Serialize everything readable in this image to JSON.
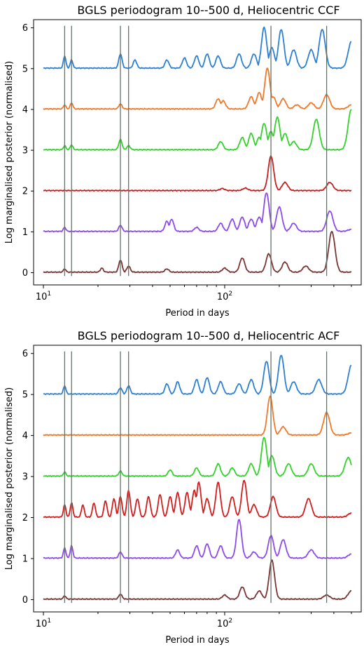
{
  "chart_data": [
    {
      "type": "line",
      "title": "BGLS periodogram  10--500 d, Heliocentric CCF",
      "xlabel": "Period in days",
      "ylabel": "Log marginalised posterior (normalised)",
      "xscale": "log",
      "xlim": [
        10,
        500
      ],
      "ylim": [
        -0.3,
        6.2
      ],
      "yticks": [
        0,
        1,
        2,
        3,
        4,
        5,
        6
      ],
      "xticks": [
        {
          "base": "10",
          "exp": "1",
          "value": 10
        },
        {
          "base": "10",
          "exp": "2",
          "value": 100
        }
      ],
      "vlines": [
        13.1,
        14.3,
        26.6,
        29.5,
        180,
        365
      ],
      "series": [
        {
          "offset": 5,
          "color": "#2b7fd4",
          "peaks": [
            [
              13.1,
              0.3
            ],
            [
              14.3,
              0.2
            ],
            [
              26.6,
              0.35
            ],
            [
              32,
              0.2
            ],
            [
              48,
              0.2
            ],
            [
              60,
              0.25
            ],
            [
              70,
              0.3
            ],
            [
              80,
              0.35
            ],
            [
              92,
              0.3
            ],
            [
              120,
              0.35
            ],
            [
              145,
              0.35
            ],
            [
              165,
              1.0
            ],
            [
              182,
              0.5
            ],
            [
              205,
              0.95
            ],
            [
              240,
              0.45
            ],
            [
              300,
              0.45
            ],
            [
              345,
              0.95
            ],
            [
              500,
              0.65
            ]
          ]
        },
        {
          "offset": 4,
          "color": "#f07828",
          "peaks": [
            [
              13.1,
              0.1
            ],
            [
              14.3,
              0.15
            ],
            [
              26.6,
              0.12
            ],
            [
              92,
              0.25
            ],
            [
              98,
              0.2
            ],
            [
              140,
              0.3
            ],
            [
              155,
              0.4
            ],
            [
              172,
              1.0
            ],
            [
              185,
              0.3
            ],
            [
              210,
              0.25
            ],
            [
              250,
              0.1
            ],
            [
              300,
              0.15
            ],
            [
              365,
              0.35
            ],
            [
              500,
              0.1
            ]
          ]
        },
        {
          "offset": 3,
          "color": "#32d22a",
          "peaks": [
            [
              13.1,
              0.1
            ],
            [
              14.3,
              0.12
            ],
            [
              26.6,
              0.25
            ],
            [
              29.5,
              0.1
            ],
            [
              95,
              0.2
            ],
            [
              125,
              0.3
            ],
            [
              140,
              0.4
            ],
            [
              155,
              0.3
            ],
            [
              165,
              0.65
            ],
            [
              180,
              0.45
            ],
            [
              195,
              0.8
            ],
            [
              215,
              0.4
            ],
            [
              240,
              0.2
            ],
            [
              320,
              0.75
            ],
            [
              500,
              1.0
            ]
          ]
        },
        {
          "offset": 2,
          "color": "#c81e1e",
          "peaks": [
            [
              97,
              0.05
            ],
            [
              130,
              0.06
            ],
            [
              180,
              0.85
            ],
            [
              215,
              0.2
            ],
            [
              380,
              0.2
            ]
          ]
        },
        {
          "offset": 1,
          "color": "#8c4aec",
          "peaks": [
            [
              13.1,
              0.1
            ],
            [
              26.6,
              0.15
            ],
            [
              48,
              0.25
            ],
            [
              51,
              0.3
            ],
            [
              70,
              0.1
            ],
            [
              95,
              0.2
            ],
            [
              110,
              0.3
            ],
            [
              125,
              0.35
            ],
            [
              140,
              0.3
            ],
            [
              155,
              0.35
            ],
            [
              170,
              0.95
            ],
            [
              200,
              0.6
            ],
            [
              240,
              0.2
            ],
            [
              380,
              0.5
            ],
            [
              500,
              0.05
            ]
          ]
        },
        {
          "offset": 0,
          "color": "#7a3434",
          "peaks": [
            [
              13.1,
              0.08
            ],
            [
              21,
              0.1
            ],
            [
              26.6,
              0.3
            ],
            [
              29.5,
              0.15
            ],
            [
              48,
              0.08
            ],
            [
              100,
              0.1
            ],
            [
              125,
              0.35
            ],
            [
              175,
              0.45
            ],
            [
              215,
              0.25
            ],
            [
              280,
              0.15
            ],
            [
              390,
              1.0
            ]
          ]
        }
      ]
    },
    {
      "type": "line",
      "title": "BGLS periodogram  10--500 d, Heliocentric ACF",
      "xlabel": "Period in days",
      "ylabel": "Log marginalised posterior (normalised)",
      "xscale": "log",
      "xlim": [
        10,
        500
      ],
      "ylim": [
        -0.3,
        6.2
      ],
      "yticks": [
        0,
        1,
        2,
        3,
        4,
        5,
        6
      ],
      "xticks": [
        {
          "base": "10",
          "exp": "1",
          "value": 10
        },
        {
          "base": "10",
          "exp": "2",
          "value": 100
        }
      ],
      "vlines": [
        13.1,
        14.3,
        26.6,
        29.5,
        180,
        365
      ],
      "series": [
        {
          "offset": 5,
          "color": "#2b7fd4",
          "peaks": [
            [
              13.1,
              0.2
            ],
            [
              26.6,
              0.15
            ],
            [
              29.5,
              0.2
            ],
            [
              48,
              0.25
            ],
            [
              55,
              0.3
            ],
            [
              70,
              0.35
            ],
            [
              80,
              0.4
            ],
            [
              95,
              0.3
            ],
            [
              120,
              0.25
            ],
            [
              140,
              0.35
            ],
            [
              170,
              0.8
            ],
            [
              205,
              0.95
            ],
            [
              240,
              0.3
            ],
            [
              330,
              0.35
            ],
            [
              500,
              0.7
            ]
          ]
        },
        {
          "offset": 4,
          "color": "#f07828",
          "peaks": [
            [
              178,
              0.95
            ],
            [
              210,
              0.2
            ],
            [
              365,
              0.55
            ],
            [
              500,
              0.05
            ]
          ]
        },
        {
          "offset": 3,
          "color": "#32d22a",
          "peaks": [
            [
              13.1,
              0.1
            ],
            [
              26.6,
              0.12
            ],
            [
              50,
              0.15
            ],
            [
              70,
              0.2
            ],
            [
              92,
              0.3
            ],
            [
              110,
              0.2
            ],
            [
              140,
              0.3
            ],
            [
              165,
              0.95
            ],
            [
              182,
              0.5
            ],
            [
              225,
              0.3
            ],
            [
              300,
              0.3
            ],
            [
              480,
              0.45
            ]
          ]
        },
        {
          "offset": 2,
          "color": "#d41c1c",
          "peaks": [
            [
              13.1,
              0.3
            ],
            [
              14.3,
              0.35
            ],
            [
              16.5,
              0.3
            ],
            [
              19,
              0.35
            ],
            [
              22,
              0.4
            ],
            [
              24.5,
              0.45
            ],
            [
              26.6,
              0.5
            ],
            [
              29.5,
              0.65
            ],
            [
              33,
              0.45
            ],
            [
              38,
              0.5
            ],
            [
              44,
              0.55
            ],
            [
              50,
              0.5
            ],
            [
              55,
              0.6
            ],
            [
              62,
              0.6
            ],
            [
              68,
              0.65
            ],
            [
              72,
              0.85
            ],
            [
              80,
              0.45
            ],
            [
              92,
              0.85
            ],
            [
              110,
              0.5
            ],
            [
              128,
              0.9
            ],
            [
              145,
              0.3
            ],
            [
              185,
              0.5
            ],
            [
              290,
              0.45
            ],
            [
              500,
              0.1
            ]
          ]
        },
        {
          "offset": 1,
          "color": "#8c4aec",
          "peaks": [
            [
              13.1,
              0.25
            ],
            [
              14.3,
              0.3
            ],
            [
              26.6,
              0.15
            ],
            [
              55,
              0.2
            ],
            [
              70,
              0.3
            ],
            [
              80,
              0.35
            ],
            [
              95,
              0.3
            ],
            [
              120,
              0.95
            ],
            [
              145,
              0.15
            ],
            [
              180,
              0.55
            ],
            [
              210,
              0.45
            ],
            [
              300,
              0.2
            ],
            [
              500,
              0.1
            ]
          ]
        },
        {
          "offset": 0,
          "color": "#7a3434",
          "peaks": [
            [
              13.1,
              0.08
            ],
            [
              26.6,
              0.12
            ],
            [
              100,
              0.1
            ],
            [
              125,
              0.3
            ],
            [
              155,
              0.2
            ],
            [
              182,
              0.95
            ],
            [
              365,
              0.1
            ],
            [
              500,
              0.2
            ]
          ]
        }
      ]
    }
  ]
}
